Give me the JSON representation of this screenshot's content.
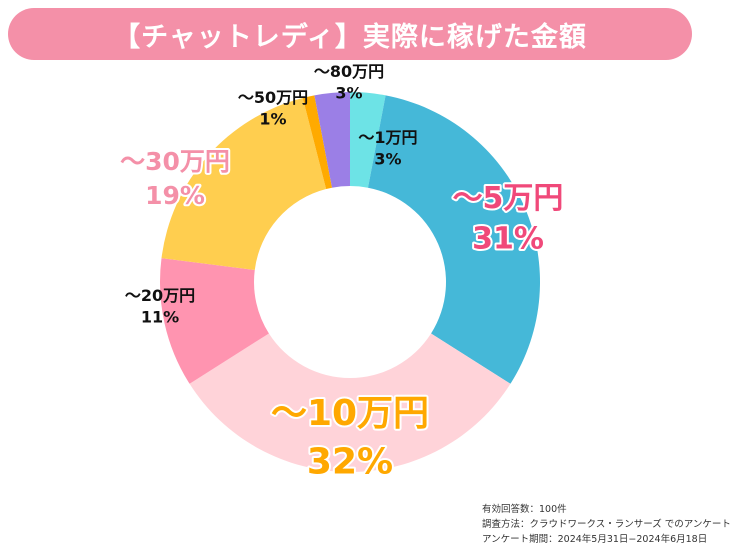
{
  "header": {
    "title": "【チャットレディ】実際に稼げた金額"
  },
  "chart_data": {
    "type": "pie",
    "title": "【チャットレディ】実際に稼げた金額",
    "categories": [
      "〜1万円",
      "〜5万円",
      "〜10万円",
      "〜20万円",
      "〜30万円",
      "〜50万円",
      "〜80万円"
    ],
    "values": [
      3,
      31,
      32,
      11,
      19,
      1,
      3
    ],
    "value_labels": [
      "3%",
      "31%",
      "32%",
      "11%",
      "19%",
      "1%",
      "3%"
    ],
    "colors": [
      "#6de3e6",
      "#45b8d8",
      "#ffd3d9",
      "#ff94b0",
      "#ffce4f",
      "#ffaa00",
      "#9b7fe6"
    ],
    "label_colors": [
      "#111111",
      "#f0497a",
      "#ffa800",
      "#111111",
      "#f490a8",
      "#111111",
      "#111111"
    ],
    "donut": true,
    "legend": "none"
  },
  "notes": {
    "respondents": "有効回答数：100件",
    "method": "調査方法：クラウドワークス・ランサーズ でのアンケート",
    "period": "アンケート期間：2024年5月31日−2024年6月18日"
  }
}
